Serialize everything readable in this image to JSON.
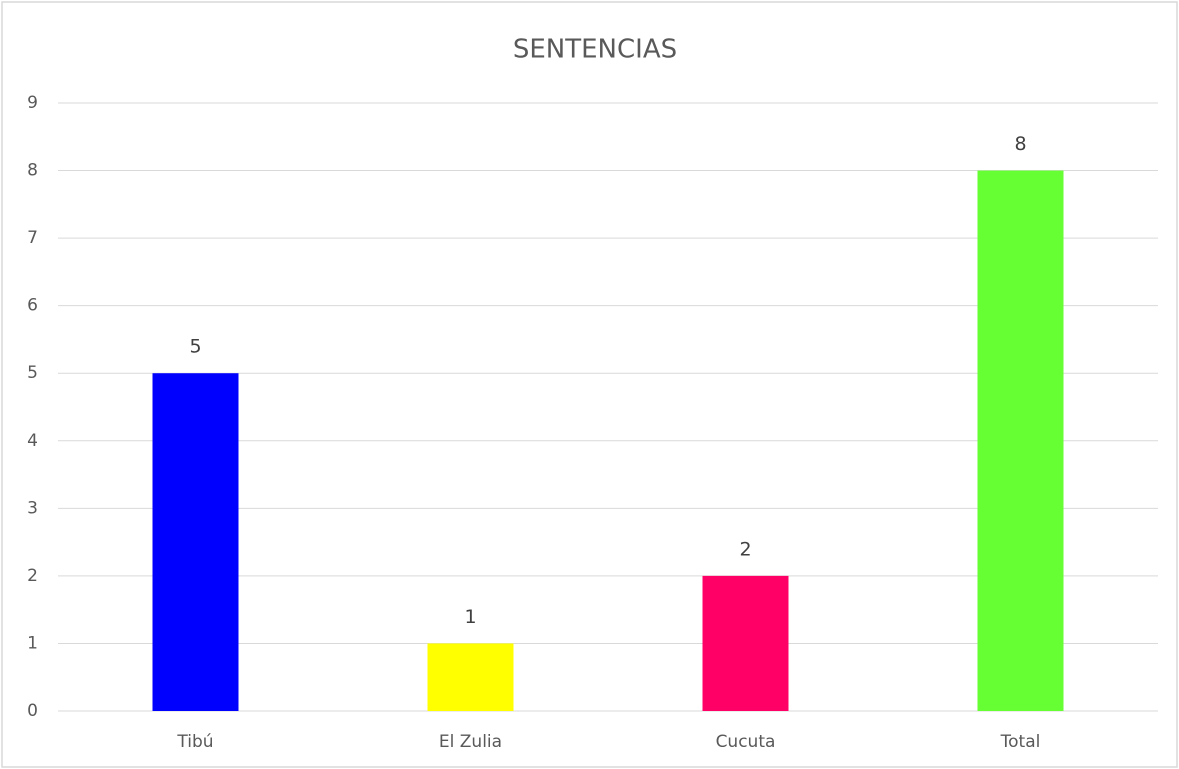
{
  "chart_data": {
    "type": "bar",
    "title": "SENTENCIAS",
    "categories": [
      "Tibú",
      "El Zulia",
      "Cucuta",
      "Total"
    ],
    "values": [
      5,
      1,
      2,
      8
    ],
    "colors": [
      "#0000ff",
      "#ffff00",
      "#ff0066",
      "#66ff33"
    ],
    "ylim": [
      0,
      9
    ],
    "yticks": [
      0,
      1,
      2,
      3,
      4,
      5,
      6,
      7,
      8,
      9
    ],
    "grid": true
  }
}
